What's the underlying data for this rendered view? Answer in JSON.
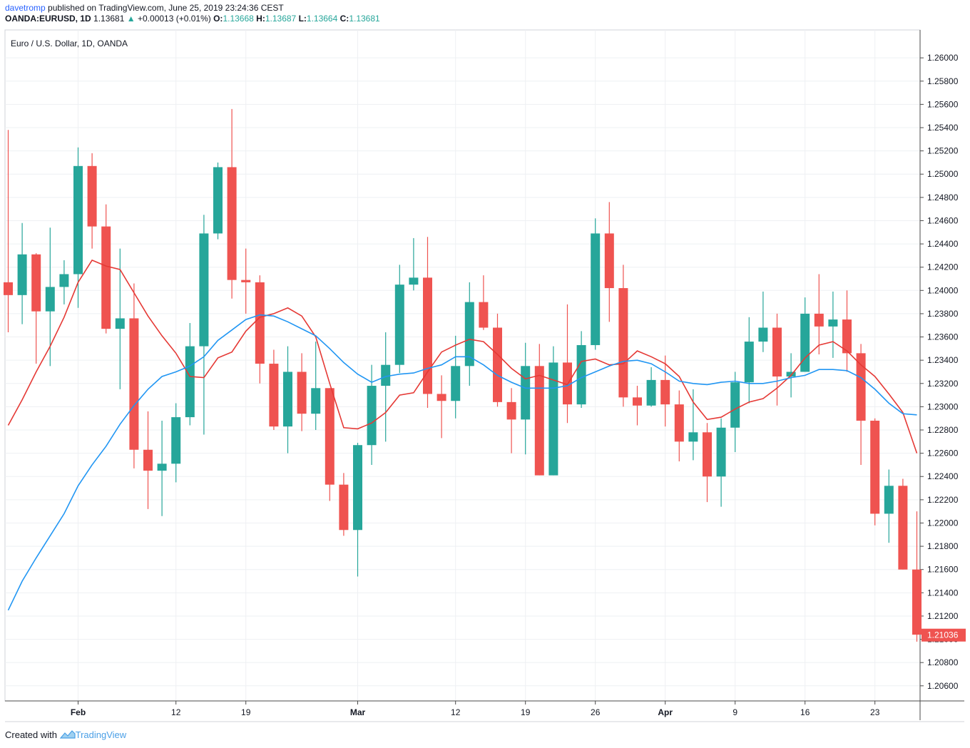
{
  "header": {
    "user": "davetromp",
    "published": "published on TradingView.com, June 25, 2019 23:24:36 CEST",
    "symbol": "OANDA:EURUSD, 1D",
    "last": "1.13681",
    "change_arrow": "▲",
    "change": "+0.00013 (+0.01%)",
    "o_label": "O:",
    "o_val": "1.13668",
    "h_label": "H:",
    "h_val": "1.13687",
    "l_label": "L:",
    "l_val": "1.13664",
    "c_label": "C:",
    "c_val": "1.13681"
  },
  "footer": {
    "created_with": "Created with",
    "brand": "TradingView",
    "brand_icon": "tradingview-logo-icon"
  },
  "colors": {
    "up": "#26a69a",
    "down": "#ef5350",
    "ma_red": "#e53935",
    "ma_blue": "#2196f3",
    "grid": "#eef0f3",
    "axis": "#4a4a4a",
    "price_tag": "#ef5350"
  },
  "chart_data": {
    "type": "candlestick",
    "title": "Euro / U.S. Dollar, 1D, OANDA",
    "ylim": [
      1.2047,
      1.2624
    ],
    "y_ticks": [
      "1.26000",
      "1.25800",
      "1.25600",
      "1.25400",
      "1.25200",
      "1.25000",
      "1.24800",
      "1.24600",
      "1.24400",
      "1.24200",
      "1.24000",
      "1.23800",
      "1.23600",
      "1.23400",
      "1.23200",
      "1.23000",
      "1.22800",
      "1.22600",
      "1.22400",
      "1.22200",
      "1.22000",
      "1.21800",
      "1.21600",
      "1.21400",
      "1.21200",
      "1.21000",
      "1.20800",
      "1.20600"
    ],
    "x_ticks": [
      {
        "label": "Feb",
        "index": 5,
        "bold": true
      },
      {
        "label": "12",
        "index": 12,
        "bold": false
      },
      {
        "label": "19",
        "index": 17,
        "bold": false
      },
      {
        "label": "Mar",
        "index": 25,
        "bold": true
      },
      {
        "label": "12",
        "index": 32,
        "bold": false
      },
      {
        "label": "19",
        "index": 37,
        "bold": false
      },
      {
        "label": "26",
        "index": 42,
        "bold": false
      },
      {
        "label": "Apr",
        "index": 47,
        "bold": true
      },
      {
        "label": "9",
        "index": 52,
        "bold": false
      },
      {
        "label": "16",
        "index": 57,
        "bold": false
      },
      {
        "label": "23",
        "index": 62,
        "bold": false
      }
    ],
    "last_price": "1.21036",
    "candles": [
      {
        "o": 1.2407,
        "h": 1.2538,
        "l": 1.2364,
        "c": 1.2396
      },
      {
        "o": 1.2396,
        "h": 1.2458,
        "l": 1.2371,
        "c": 1.2431
      },
      {
        "o": 1.2431,
        "h": 1.2432,
        "l": 1.2337,
        "c": 1.2382
      },
      {
        "o": 1.2382,
        "h": 1.2454,
        "l": 1.2335,
        "c": 1.2403
      },
      {
        "o": 1.2403,
        "h": 1.2426,
        "l": 1.2388,
        "c": 1.2414
      },
      {
        "o": 1.2414,
        "h": 1.2523,
        "l": 1.2385,
        "c": 1.2507
      },
      {
        "o": 1.2507,
        "h": 1.2518,
        "l": 1.2436,
        "c": 1.2455
      },
      {
        "o": 1.2455,
        "h": 1.2474,
        "l": 1.2363,
        "c": 1.2367
      },
      {
        "o": 1.2367,
        "h": 1.2436,
        "l": 1.2315,
        "c": 1.2376
      },
      {
        "o": 1.2376,
        "h": 1.2406,
        "l": 1.2247,
        "c": 1.2263
      },
      {
        "o": 1.2263,
        "h": 1.2296,
        "l": 1.2212,
        "c": 1.2245
      },
      {
        "o": 1.2245,
        "h": 1.2288,
        "l": 1.2206,
        "c": 1.2251
      },
      {
        "o": 1.2251,
        "h": 1.2303,
        "l": 1.2235,
        "c": 1.2291
      },
      {
        "o": 1.2291,
        "h": 1.2372,
        "l": 1.2284,
        "c": 1.2352
      },
      {
        "o": 1.2352,
        "h": 1.2465,
        "l": 1.2276,
        "c": 1.2449
      },
      {
        "o": 1.2449,
        "h": 1.251,
        "l": 1.2444,
        "c": 1.2506
      },
      {
        "o": 1.2506,
        "h": 1.2556,
        "l": 1.2393,
        "c": 1.2409
      },
      {
        "o": 1.2409,
        "h": 1.2436,
        "l": 1.238,
        "c": 1.2407
      },
      {
        "o": 1.2407,
        "h": 1.2413,
        "l": 1.232,
        "c": 1.2337
      },
      {
        "o": 1.2337,
        "h": 1.2349,
        "l": 1.228,
        "c": 1.2283
      },
      {
        "o": 1.2283,
        "h": 1.2352,
        "l": 1.226,
        "c": 1.233
      },
      {
        "o": 1.233,
        "h": 1.2346,
        "l": 1.2279,
        "c": 1.2294
      },
      {
        "o": 1.2294,
        "h": 1.2356,
        "l": 1.228,
        "c": 1.2316
      },
      {
        "o": 1.2316,
        "h": 1.2316,
        "l": 1.2219,
        "c": 1.2233
      },
      {
        "o": 1.2233,
        "h": 1.2243,
        "l": 1.2189,
        "c": 1.2194
      },
      {
        "o": 1.2194,
        "h": 1.2269,
        "l": 1.2154,
        "c": 1.2267
      },
      {
        "o": 1.2267,
        "h": 1.2336,
        "l": 1.225,
        "c": 1.2318
      },
      {
        "o": 1.2318,
        "h": 1.2364,
        "l": 1.227,
        "c": 1.2336
      },
      {
        "o": 1.2336,
        "h": 1.2422,
        "l": 1.2329,
        "c": 1.2405
      },
      {
        "o": 1.2405,
        "h": 1.2445,
        "l": 1.24,
        "c": 1.2411
      },
      {
        "o": 1.2411,
        "h": 1.2446,
        "l": 1.2299,
        "c": 1.2311
      },
      {
        "o": 1.2311,
        "h": 1.2327,
        "l": 1.2273,
        "c": 1.2305
      },
      {
        "o": 1.2305,
        "h": 1.2361,
        "l": 1.229,
        "c": 1.2335
      },
      {
        "o": 1.2335,
        "h": 1.2407,
        "l": 1.2318,
        "c": 1.239
      },
      {
        "o": 1.239,
        "h": 1.2413,
        "l": 1.2366,
        "c": 1.2368
      },
      {
        "o": 1.2368,
        "h": 1.238,
        "l": 1.23,
        "c": 1.2304
      },
      {
        "o": 1.2304,
        "h": 1.2316,
        "l": 1.226,
        "c": 1.2289
      },
      {
        "o": 1.2289,
        "h": 1.2355,
        "l": 1.2259,
        "c": 1.2335
      },
      {
        "o": 1.2335,
        "h": 1.2354,
        "l": 1.2241,
        "c": 1.2241
      },
      {
        "o": 1.2241,
        "h": 1.2352,
        "l": 1.2241,
        "c": 1.2338
      },
      {
        "o": 1.2338,
        "h": 1.2388,
        "l": 1.2286,
        "c": 1.2302
      },
      {
        "o": 1.2302,
        "h": 1.2365,
        "l": 1.2299,
        "c": 1.2353
      },
      {
        "o": 1.2353,
        "h": 1.2462,
        "l": 1.2349,
        "c": 1.2449
      },
      {
        "o": 1.2449,
        "h": 1.2476,
        "l": 1.2373,
        "c": 1.2402
      },
      {
        "o": 1.2402,
        "h": 1.2422,
        "l": 1.23,
        "c": 1.2308
      },
      {
        "o": 1.2308,
        "h": 1.2318,
        "l": 1.2284,
        "c": 1.2301
      },
      {
        "o": 1.2301,
        "h": 1.2334,
        "l": 1.23,
        "c": 1.2323
      },
      {
        "o": 1.2323,
        "h": 1.2344,
        "l": 1.2283,
        "c": 1.2302
      },
      {
        "o": 1.2302,
        "h": 1.2314,
        "l": 1.2253,
        "c": 1.227
      },
      {
        "o": 1.227,
        "h": 1.2315,
        "l": 1.2254,
        "c": 1.2278
      },
      {
        "o": 1.2278,
        "h": 1.2286,
        "l": 1.2218,
        "c": 1.224
      },
      {
        "o": 1.224,
        "h": 1.229,
        "l": 1.2214,
        "c": 1.2282
      },
      {
        "o": 1.2282,
        "h": 1.233,
        "l": 1.2261,
        "c": 1.2321
      },
      {
        "o": 1.2321,
        "h": 1.2377,
        "l": 1.2303,
        "c": 1.2356
      },
      {
        "o": 1.2356,
        "h": 1.2399,
        "l": 1.2347,
        "c": 1.2368
      },
      {
        "o": 1.2368,
        "h": 1.238,
        "l": 1.2301,
        "c": 1.2326
      },
      {
        "o": 1.2326,
        "h": 1.2346,
        "l": 1.2308,
        "c": 1.233
      },
      {
        "o": 1.233,
        "h": 1.2394,
        "l": 1.233,
        "c": 1.238
      },
      {
        "o": 1.238,
        "h": 1.2414,
        "l": 1.2345,
        "c": 1.2369
      },
      {
        "o": 1.2369,
        "h": 1.2399,
        "l": 1.2342,
        "c": 1.2375
      },
      {
        "o": 1.2375,
        "h": 1.24,
        "l": 1.233,
        "c": 1.2346
      },
      {
        "o": 1.2346,
        "h": 1.2354,
        "l": 1.225,
        "c": 1.2288
      },
      {
        "o": 1.2288,
        "h": 1.229,
        "l": 1.2198,
        "c": 1.2208
      },
      {
        "o": 1.2208,
        "h": 1.2246,
        "l": 1.2183,
        "c": 1.2232
      },
      {
        "o": 1.2232,
        "h": 1.2238,
        "l": 1.216,
        "c": 1.216
      },
      {
        "o": 1.216,
        "h": 1.221,
        "l": 1.2098,
        "c": 1.2104
      }
    ],
    "series": [
      {
        "name": "MA short",
        "color": "#e53935",
        "values": [
          1.2284,
          1.2306,
          1.233,
          1.2352,
          1.2377,
          1.2407,
          1.2426,
          1.2421,
          1.2418,
          1.2398,
          1.2378,
          1.2361,
          1.2346,
          1.2326,
          1.2325,
          1.2342,
          1.2347,
          1.2365,
          1.2377,
          1.238,
          1.2385,
          1.2378,
          1.236,
          1.232,
          1.2282,
          1.2281,
          1.2286,
          1.2295,
          1.231,
          1.2312,
          1.233,
          1.2347,
          1.2353,
          1.2358,
          1.2356,
          1.2345,
          1.2333,
          1.2324,
          1.2327,
          1.2323,
          1.2319,
          1.2339,
          1.2341,
          1.2336,
          1.2337,
          1.2348,
          1.2343,
          1.2337,
          1.2326,
          1.2304,
          1.2289,
          1.2291,
          1.2298,
          1.2304,
          1.2307,
          1.2316,
          1.2327,
          1.2342,
          1.2353,
          1.2356,
          1.2348,
          1.2336,
          1.2326,
          1.2311,
          1.2295,
          1.226
        ]
      },
      {
        "name": "MA long",
        "color": "#2196f3",
        "values": [
          1.2125,
          1.215,
          1.217,
          1.2189,
          1.2208,
          1.2232,
          1.225,
          1.2266,
          1.2285,
          1.2301,
          1.2315,
          1.2326,
          1.233,
          1.2335,
          1.2343,
          1.2357,
          1.2366,
          1.2375,
          1.2379,
          1.2378,
          1.2373,
          1.2367,
          1.2361,
          1.235,
          1.2338,
          1.2328,
          1.2321,
          1.2326,
          1.2328,
          1.2329,
          1.2333,
          1.2336,
          1.2343,
          1.2343,
          1.2336,
          1.2327,
          1.2321,
          1.2316,
          1.2316,
          1.2316,
          1.2318,
          1.2325,
          1.233,
          1.2335,
          1.2339,
          1.234,
          1.2337,
          1.233,
          1.2322,
          1.232,
          1.2319,
          1.2321,
          1.2322,
          1.232,
          1.232,
          1.2322,
          1.2325,
          1.2327,
          1.2332,
          1.2332,
          1.2331,
          1.2325,
          1.2315,
          1.2303,
          1.2294,
          1.2293
        ]
      }
    ]
  }
}
